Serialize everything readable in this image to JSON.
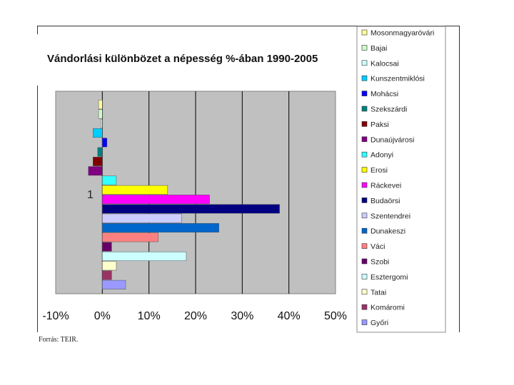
{
  "chart_data": {
    "type": "bar",
    "orientation": "horizontal",
    "title": "Vándorlási különbözet a népesség %-ában 1990-2005",
    "category_label": "1",
    "xlim": [
      -10,
      50
    ],
    "x_ticks": [
      "-10%",
      "0%",
      "10%",
      "20%",
      "30%",
      "40%",
      "50%"
    ],
    "tick_values": [
      -10,
      0,
      10,
      20,
      30,
      40,
      50
    ],
    "grid": true,
    "legend_position": "right",
    "series": [
      {
        "name": "Mosonmagyaróvári",
        "value": -0.8,
        "color": "#ffff99"
      },
      {
        "name": "Bajai",
        "value": -0.8,
        "color": "#ccffcc"
      },
      {
        "name": "Kalocsai",
        "value": -0.3,
        "color": "#ccffff"
      },
      {
        "name": "Kunszentmiklósi",
        "value": -2.0,
        "color": "#00ccff"
      },
      {
        "name": "Mohácsi",
        "value": 1.0,
        "color": "#0000ff"
      },
      {
        "name": "Szekszárdi",
        "value": -1.0,
        "color": "#008080"
      },
      {
        "name": "Paksi",
        "value": -2.0,
        "color": "#800000"
      },
      {
        "name": "Dunaújvárosi",
        "value": -3.0,
        "color": "#800080"
      },
      {
        "name": "Adonyi",
        "value": 3.0,
        "color": "#33ffff"
      },
      {
        "name": "Erosi",
        "value": 14.0,
        "color": "#ffff00"
      },
      {
        "name": "Ráckevei",
        "value": 23.0,
        "color": "#ff00ff"
      },
      {
        "name": "Budaörsi",
        "value": 38.0,
        "color": "#000080"
      },
      {
        "name": "Szentendrei",
        "value": 17.0,
        "color": "#ccccff"
      },
      {
        "name": "Dunakeszi",
        "value": 25.0,
        "color": "#0066cc"
      },
      {
        "name": "Váci",
        "value": 12.0,
        "color": "#ff8080"
      },
      {
        "name": "Szobi",
        "value": 2.0,
        "color": "#660066"
      },
      {
        "name": "Esztergomi",
        "value": 18.0,
        "color": "#ccffff"
      },
      {
        "name": "Tatai",
        "value": 3.0,
        "color": "#ffffcc"
      },
      {
        "name": "Komáromi",
        "value": 2.0,
        "color": "#993366"
      },
      {
        "name": "Győri",
        "value": 5.0,
        "color": "#9999ff"
      }
    ]
  },
  "source_note": "Forrás: TEIR."
}
